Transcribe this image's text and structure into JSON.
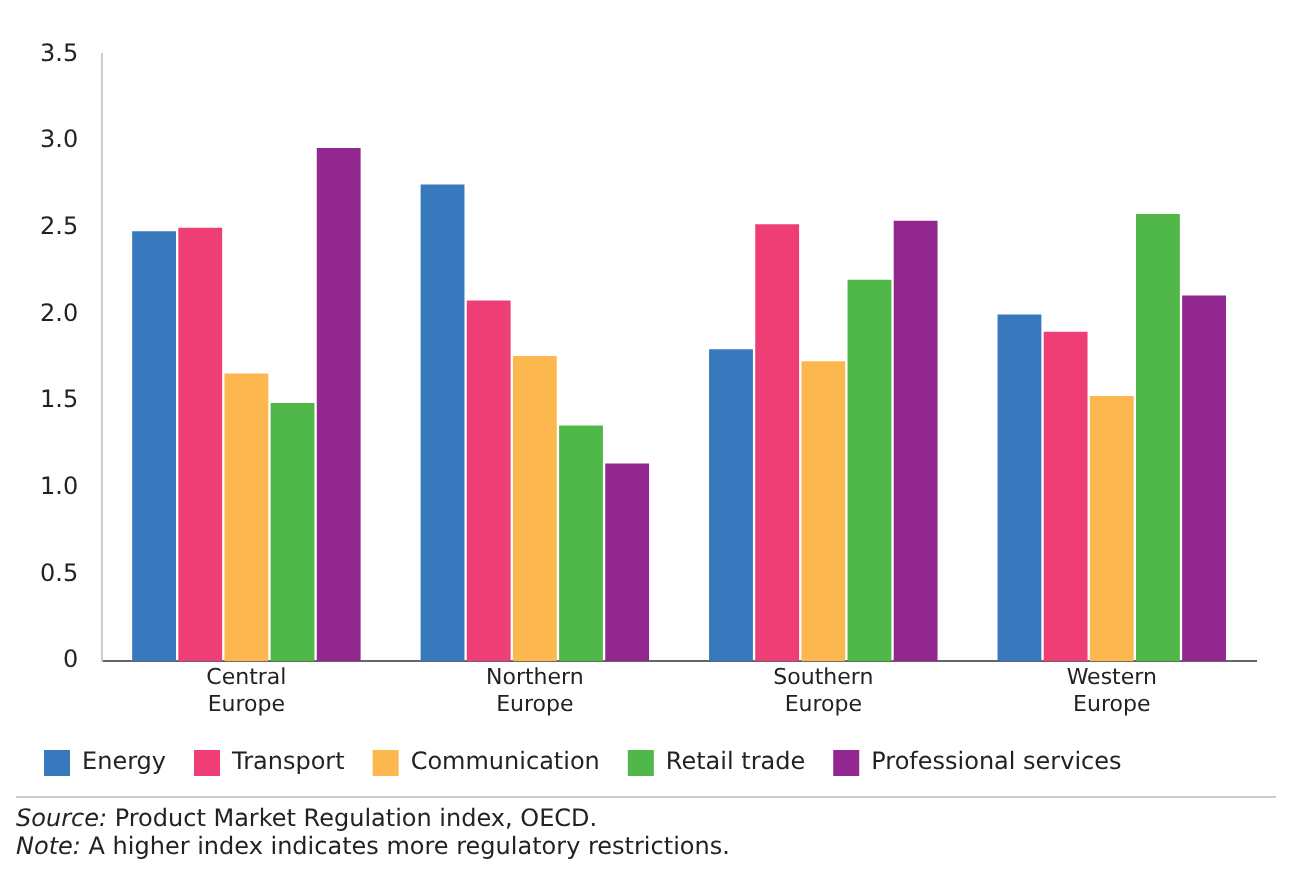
{
  "chart_data": {
    "type": "bar",
    "categories": [
      "Central Europe",
      "Northern Europe",
      "Southern Europe",
      "Western Europe"
    ],
    "series": [
      {
        "name": "Energy",
        "color": "#3878bc",
        "values": [
          2.48,
          2.75,
          1.8,
          2.0
        ]
      },
      {
        "name": "Transport",
        "color": "#ef3e76",
        "values": [
          2.5,
          2.08,
          2.52,
          1.9
        ]
      },
      {
        "name": "Communication",
        "color": "#fdb74f",
        "values": [
          1.66,
          1.76,
          1.73,
          1.53
        ]
      },
      {
        "name": "Retail trade",
        "color": "#50b848",
        "values": [
          1.49,
          1.36,
          2.2,
          2.58
        ]
      },
      {
        "name": "Professional services",
        "color": "#92278f",
        "values": [
          2.96,
          1.14,
          2.54,
          2.11
        ]
      }
    ],
    "ylim": [
      0,
      3.5
    ],
    "yticks": [
      0,
      0.5,
      {
        "value": 1,
        "label": "1.0"
      },
      1.5,
      {
        "value": 2,
        "label": "2.0"
      },
      2.5,
      {
        "value": 3,
        "label": "3.0"
      },
      3.5
    ],
    "grid": false,
    "legend": "bottom",
    "annotations": [
      "Source: Product Market Regulation index, OECD.",
      "Note: A higher index indicates more regulatory restrictions."
    ]
  }
}
